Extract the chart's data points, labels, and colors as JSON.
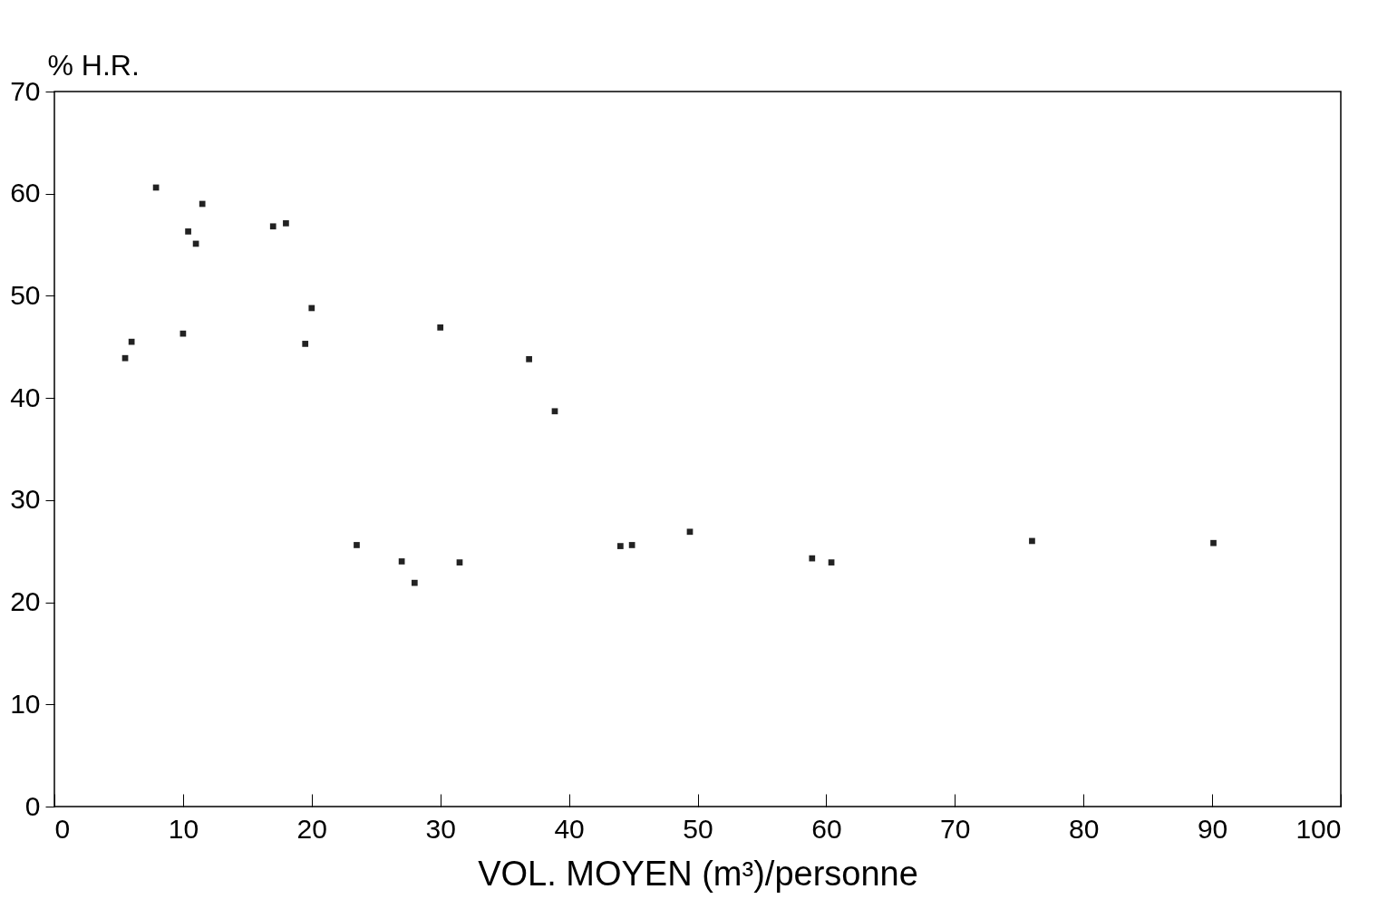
{
  "chart_data": {
    "type": "scatter",
    "xlabel": "VOL. MOYEN (m³)/personne",
    "ylabel": "% H.R.",
    "x": [
      5.5,
      6.0,
      7.9,
      10.0,
      10.4,
      11.0,
      11.5,
      17.0,
      18.0,
      19.5,
      20.0,
      23.5,
      27.0,
      28.0,
      30.0,
      31.5,
      36.9,
      38.9,
      44.0,
      44.9,
      49.4,
      58.9,
      60.4,
      76.0,
      90.1
    ],
    "series": [
      {
        "color": "#222222",
        "values": [
          43.9,
          45.5,
          60.6,
          46.3,
          56.3,
          55.1,
          59.0,
          56.8,
          57.1,
          45.3,
          48.8,
          25.6,
          24.0,
          21.9,
          46.9,
          23.9,
          43.8,
          38.7,
          25.5,
          25.6,
          26.9,
          24.3,
          23.9,
          26.0,
          25.8
        ]
      }
    ],
    "marker": "square",
    "grid": false,
    "xlim": [
      0,
      100
    ],
    "xticks": [
      0,
      10,
      20,
      30,
      40,
      50,
      60,
      70,
      80,
      90,
      100
    ],
    "ylim": [
      0,
      70
    ],
    "yticks": [
      0,
      10,
      20,
      30,
      40,
      50,
      60,
      70
    ]
  }
}
